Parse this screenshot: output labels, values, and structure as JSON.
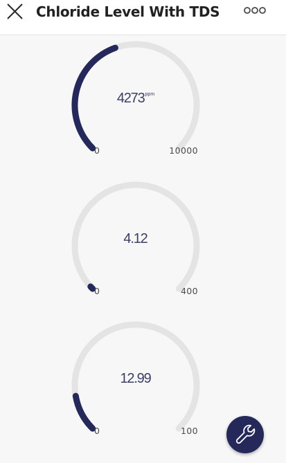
{
  "header": {
    "title": "Chloride Level With TDS",
    "close_icon": "close-icon",
    "menu_icon": "more-horizontal-icon"
  },
  "gauges": [
    {
      "value": 4273,
      "display": "4273",
      "unit": "ppm",
      "min": 0,
      "max": 10000,
      "min_label": "0",
      "max_label": "10000"
    },
    {
      "value": 4.12,
      "display": "4.12",
      "unit": "",
      "min": 0,
      "max": 400,
      "min_label": "0",
      "max_label": "400"
    },
    {
      "value": 12.99,
      "display": "12.99",
      "unit": "",
      "min": 0,
      "max": 100,
      "min_label": "0",
      "max_label": "100"
    }
  ],
  "fab": {
    "icon": "wrench-icon"
  },
  "colors": {
    "accent": "#25295a",
    "track": "#e4e4e4",
    "background": "#f7f7f7",
    "header": "#ffffff"
  }
}
